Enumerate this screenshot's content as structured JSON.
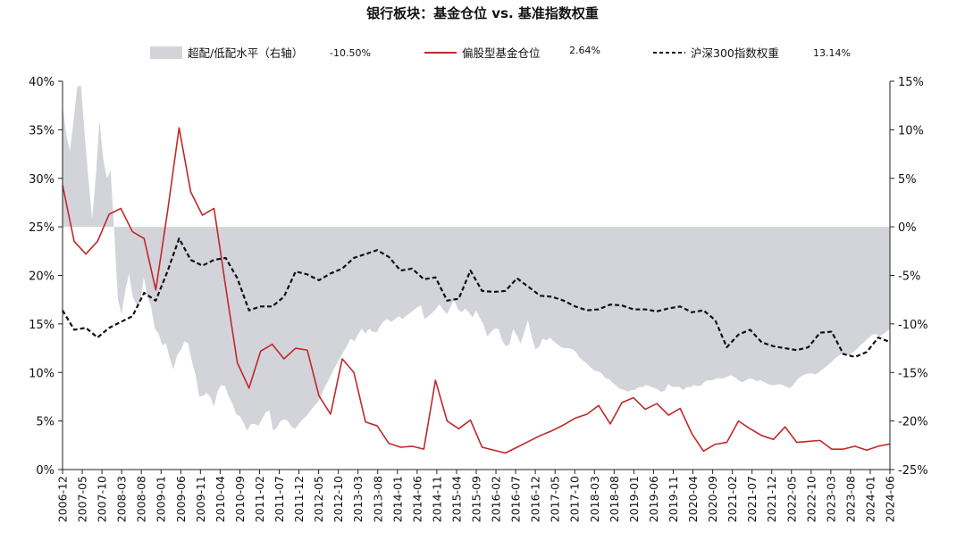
{
  "chart_data": {
    "type": "area",
    "title": "银行板块：基金仓位 vs. 基准指数权重",
    "legend_position": "top",
    "grid": false,
    "left_axis": {
      "ylim": [
        0,
        40
      ],
      "ticks": [
        "0%",
        "5%",
        "10%",
        "15%",
        "20%",
        "25%",
        "30%",
        "35%",
        "40%"
      ]
    },
    "right_axis": {
      "ylim": [
        -25,
        15
      ],
      "ticks": [
        "-25%",
        "-20%",
        "-15%",
        "-10%",
        "-5%",
        "0%",
        "5%",
        "10%",
        "15%"
      ]
    },
    "x_tick_labels": [
      "2006-12",
      "2007-05",
      "2007-10",
      "2008-03",
      "2008-08",
      "2009-01",
      "2009-06",
      "2009-11",
      "2010-04",
      "2010-09",
      "2011-02",
      "2011-07",
      "2011-12",
      "2012-05",
      "2012-10",
      "2013-03",
      "2013-08",
      "2014-01",
      "2014-06",
      "2014-11",
      "2015-04",
      "2015-09",
      "2016-02",
      "2016-07",
      "2016-12",
      "2017-05",
      "2017-10",
      "2018-03",
      "2018-08",
      "2019-01",
      "2019-06",
      "2019-11",
      "2020-04",
      "2020-09",
      "2021-02",
      "2021-07",
      "2021-12",
      "2022-05",
      "2022-10",
      "2023-03",
      "2023-08",
      "2024-01",
      "2024-06"
    ],
    "series": [
      {
        "name": "超配/低配水平（右轴）",
        "value_label": "-10.50%",
        "axis": "right",
        "style": "area",
        "color": "#d2d4da",
        "values": [
          12.5,
          9.5,
          7.8,
          11,
          14.5,
          14.5,
          9.5,
          5,
          0.8,
          5.2,
          11,
          7,
          5,
          5.8,
          -0.5,
          -7.5,
          -9,
          -6.5,
          -4.8,
          -7.2,
          -8,
          -7.8,
          -5.2,
          -7.2,
          -8.3,
          -10.5,
          -11,
          -12.2,
          -12,
          -13.5,
          -14.7,
          -13.2,
          -12.7,
          -11.8,
          -12,
          -13.8,
          -15.2,
          -17.5,
          -17.4,
          -17.1,
          -17.5,
          -18.5,
          -16.9,
          -16.3,
          -16.4,
          -17.5,
          -18.2,
          -19.3,
          -19.5,
          -20.2,
          -21,
          -20.3,
          -20.3,
          -20.5,
          -19.8,
          -19.1,
          -18.9,
          -21,
          -20.7,
          -20,
          -19.8,
          -20,
          -20.6,
          -20.8,
          -20.3,
          -19.8,
          -19.5,
          -19,
          -18.5,
          -18.1,
          -17.4,
          -16.5,
          -15.8,
          -15,
          -14.3,
          -13.6,
          -12.9,
          -12.3,
          -11.5,
          -11.8,
          -11.1,
          -10.5,
          -11,
          -10.5,
          -10.8,
          -10.9,
          -10.2,
          -9.7,
          -9.5,
          -9.8,
          -9.5,
          -9.2,
          -9.5,
          -9.2,
          -8.9,
          -8.6,
          -8.3,
          -8.1,
          -9.5,
          -9.2,
          -8.9,
          -8.5,
          -8,
          -8.5,
          -9,
          -8.3,
          -7.5,
          -8.5,
          -8.8,
          -8.4,
          -8.8,
          -9.3,
          -8.6,
          -9.4,
          -10.1,
          -11.3,
          -10.8,
          -10.5,
          -10.5,
          -11.7,
          -12.3,
          -12.1,
          -10.5,
          -11.2,
          -12,
          -10.9,
          -9.6,
          -11.3,
          -12.6,
          -12.4,
          -11.5,
          -11.7,
          -11.4,
          -11.8,
          -12.1,
          -12.4,
          -12.5,
          -12.5,
          -12.6,
          -12.9,
          -13.5,
          -13.8,
          -14.1,
          -14.5,
          -14.8,
          -14.9,
          -15.1,
          -15.6,
          -15.7,
          -16.1,
          -16.4,
          -16.7,
          -16.8,
          -17,
          -16.8,
          -16.8,
          -16.5,
          -16.5,
          -16.3,
          -16.4,
          -16.6,
          -16.7,
          -17,
          -16.9,
          -16.2,
          -16.5,
          -16.5,
          -16.5,
          -16.8,
          -16.5,
          -16.5,
          -16.3,
          -16.4,
          -16.3,
          -15.9,
          -15.8,
          -15.8,
          -15.6,
          -15.6,
          -15.6,
          -15.4,
          -15.3,
          -15.5,
          -15.8,
          -16,
          -15.8,
          -15.6,
          -15.7,
          -15.9,
          -15.8,
          -16,
          -16.2,
          -16.3,
          -16.3,
          -16.2,
          -16.3,
          -16.5,
          -16.6,
          -16.2,
          -15.7,
          -15.4,
          -15.2,
          -15.1,
          -15.1,
          -15.2,
          -14.9,
          -14.6,
          -14.3,
          -14,
          -13.6,
          -13.3,
          -13.1,
          -13.3,
          -13.2,
          -12.9,
          -12.6,
          -12.2,
          -11.9,
          -11.5,
          -11.2,
          -11,
          -11.3,
          -11.1,
          -10.8,
          -10.5
        ]
      },
      {
        "name": "偏股型基金仓位",
        "value_label": "2.64%",
        "axis": "left",
        "style": "line",
        "color": "#c0282a",
        "values": [
          29.3,
          23.5,
          22.2,
          23.5,
          26.3,
          26.9,
          24.5,
          23.8,
          18.5,
          26.5,
          35.2,
          28.6,
          26.2,
          26.9,
          18.8,
          11,
          8.4,
          12.2,
          12.9,
          11.4,
          12.5,
          12.3,
          7.6,
          5.7,
          11.4,
          10,
          4.9,
          4.5,
          2.7,
          2.3,
          2.4,
          2.1,
          9.2,
          5,
          4.2,
          5.1,
          2.3,
          2,
          1.7,
          2.3,
          2.9,
          3.5,
          4,
          4.6,
          5.3,
          5.7,
          6.6,
          4.7,
          6.9,
          7.4,
          6.2,
          6.8,
          5.6,
          6.3,
          3.7,
          1.9,
          2.6,
          2.8,
          5,
          4.2,
          3.5,
          3.1,
          4.4,
          2.8,
          2.9,
          3,
          2.1,
          2.1,
          2.4,
          2,
          2.4,
          2.64
        ]
      },
      {
        "name": "沪深300指数权重",
        "value_label": "13.14%",
        "axis": "left",
        "style": "dashed",
        "color": "#111111",
        "values": [
          16.4,
          14.4,
          14.6,
          13.6,
          14.6,
          15.2,
          15.8,
          18.2,
          17.4,
          20.4,
          23.8,
          21.6,
          21,
          21.6,
          21.8,
          19.7,
          16.4,
          16.8,
          16.8,
          17.8,
          20.4,
          20.1,
          19.5,
          20.2,
          20.7,
          21.8,
          22.2,
          22.6,
          21.9,
          20.5,
          20.7,
          19.6,
          19.8,
          17.4,
          17.6,
          20.5,
          18.4,
          18.3,
          18.4,
          19.7,
          18.8,
          17.9,
          17.8,
          17.4,
          16.8,
          16.4,
          16.5,
          17,
          16.9,
          16.5,
          16.5,
          16.3,
          16.6,
          16.8,
          16.2,
          16.4,
          15.4,
          12.6,
          13.9,
          14.4,
          13.1,
          12.7,
          12.5,
          12.3,
          12.6,
          14.1,
          14.2,
          11.9,
          11.6,
          12.1,
          13.6,
          13.14
        ]
      }
    ]
  }
}
